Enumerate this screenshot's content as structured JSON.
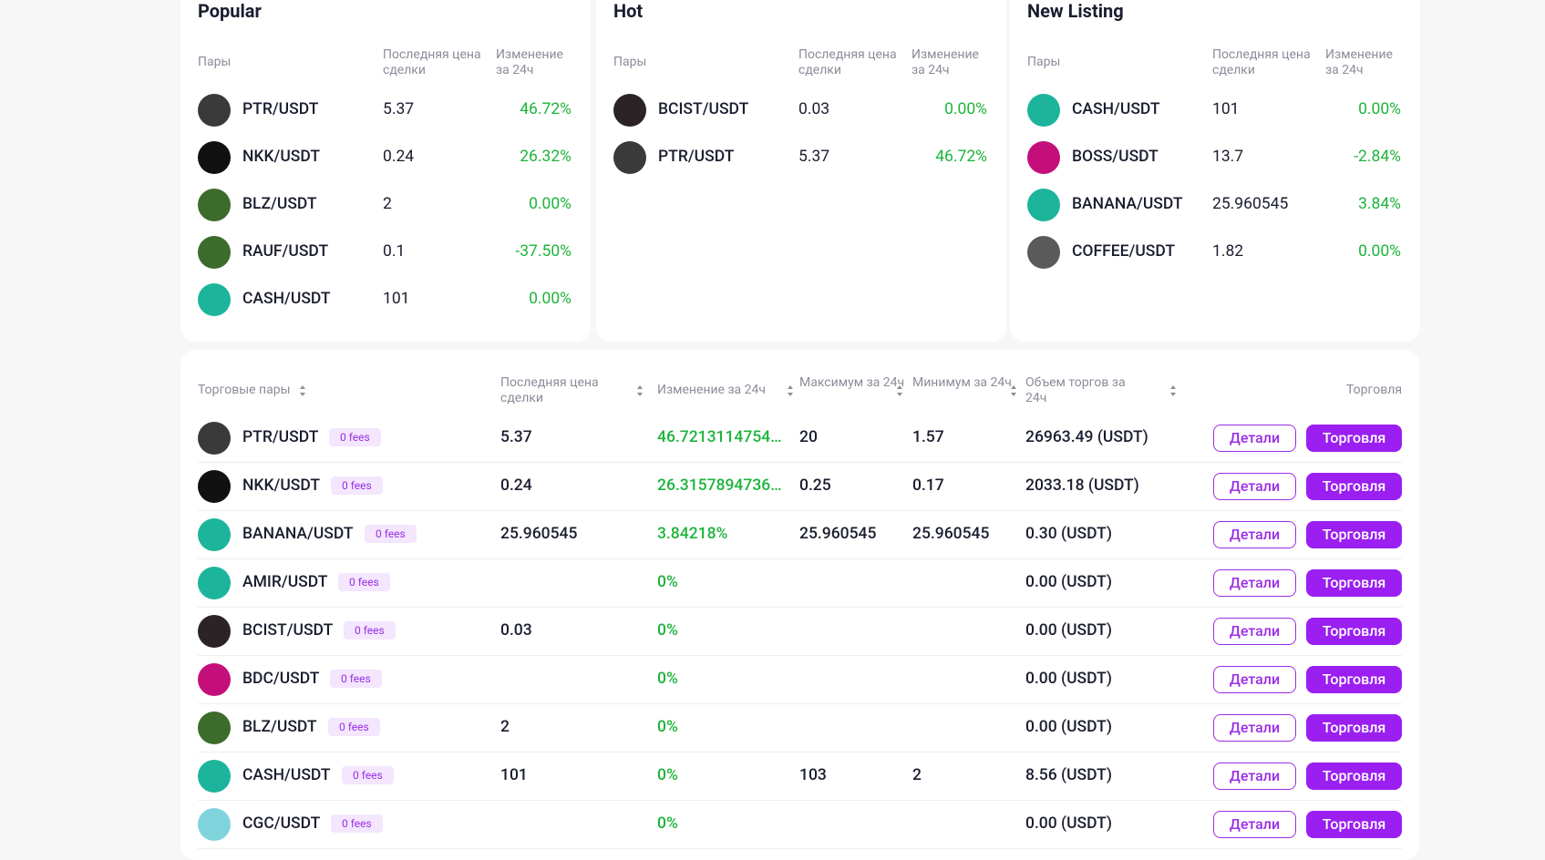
{
  "cards": [
    {
      "title": "Popular",
      "headers": [
        "Пары",
        "Последняя цена сделки",
        "Изменение за 24ч"
      ],
      "rows": [
        {
          "pair": "PTR/USDT",
          "price": "5.37",
          "change": "46.72%"
        },
        {
          "pair": "NKK/USDT",
          "price": "0.24",
          "change": "26.32%"
        },
        {
          "pair": "BLZ/USDT",
          "price": "2",
          "change": "0.00%"
        },
        {
          "pair": "RAUF/USDT",
          "price": "0.1",
          "change": "-37.50%"
        },
        {
          "pair": "CASH/USDT",
          "price": "101",
          "change": "0.00%"
        }
      ]
    },
    {
      "title": "Hot",
      "headers": [
        "Пары",
        "Последняя цена сделки",
        "Изменение за 24ч"
      ],
      "rows": [
        {
          "pair": "BCIST/USDT",
          "price": "0.03",
          "change": "0.00%"
        },
        {
          "pair": "PTR/USDT",
          "price": "5.37",
          "change": "46.72%"
        }
      ]
    },
    {
      "title": "New Listing",
      "headers": [
        "Пары",
        "Последняя цена сделки",
        "Изменение за 24ч"
      ],
      "rows": [
        {
          "pair": "CASH/USDT",
          "price": "101",
          "change": "0.00%"
        },
        {
          "pair": "BOSS/USDT",
          "price": "13.7",
          "change": "-2.84%"
        },
        {
          "pair": "BANANA/USDT",
          "price": "25.960545",
          "change": "3.84%"
        },
        {
          "pair": "COFFEE/USDT",
          "price": "1.82",
          "change": "0.00%"
        }
      ]
    }
  ],
  "table": {
    "headers": [
      "Торговые пары",
      "Последняя цена сделки",
      "Изменение за 24ч",
      "Максимум за 24ч",
      "Минимум за 24ч",
      "Объем торгов за 24ч",
      "Торговля"
    ],
    "rows": [
      {
        "pair": "PTR/USDT",
        "fees": "0 fees",
        "price": "5.37",
        "change": "46.7213114754…",
        "high": "20",
        "low": "1.57",
        "volume": "26963.49 (USDT)",
        "details": "Детали",
        "trade": "Торговля"
      },
      {
        "pair": "NKK/USDT",
        "fees": "0 fees",
        "price": "0.24",
        "change": "26.3157894736…",
        "high": "0.25",
        "low": "0.17",
        "volume": "2033.18 (USDT)",
        "details": "Детали",
        "trade": "Торговля"
      },
      {
        "pair": "BANANA/USDT",
        "fees": "0 fees",
        "price": "25.960545",
        "change": "3.84218%",
        "high": "25.960545",
        "low": "25.960545",
        "volume": "0.30 (USDT)",
        "details": "Детали",
        "trade": "Торговля"
      },
      {
        "pair": "AMIR/USDT",
        "fees": "0 fees",
        "price": null,
        "change": "0%",
        "high": null,
        "low": null,
        "volume": "0.00 (USDT)",
        "details": "Детали",
        "trade": "Торговля"
      },
      {
        "pair": "BCIST/USDT",
        "fees": "0 fees",
        "price": "0.03",
        "change": "0%",
        "high": null,
        "low": null,
        "volume": "0.00 (USDT)",
        "details": "Детали",
        "trade": "Торговля"
      },
      {
        "pair": "BDC/USDT",
        "fees": "0 fees",
        "price": null,
        "change": "0%",
        "high": null,
        "low": null,
        "volume": "0.00 (USDT)",
        "details": "Детали",
        "trade": "Торговля"
      },
      {
        "pair": "BLZ/USDT",
        "fees": "0 fees",
        "price": "2",
        "change": "0%",
        "high": null,
        "low": null,
        "volume": "0.00 (USDT)",
        "details": "Детали",
        "trade": "Торговля"
      },
      {
        "pair": "CASH/USDT",
        "fees": "0 fees",
        "price": "101",
        "change": "0%",
        "high": "103",
        "low": "2",
        "volume": "8.56 (USDT)",
        "details": "Детали",
        "trade": "Торговля"
      },
      {
        "pair": "CGC/USDT",
        "fees": "0 fees",
        "price": null,
        "change": "0%",
        "high": null,
        "low": null,
        "volume": "0.00 (USDT)",
        "details": "Детали",
        "trade": "Торговля"
      }
    ]
  }
}
